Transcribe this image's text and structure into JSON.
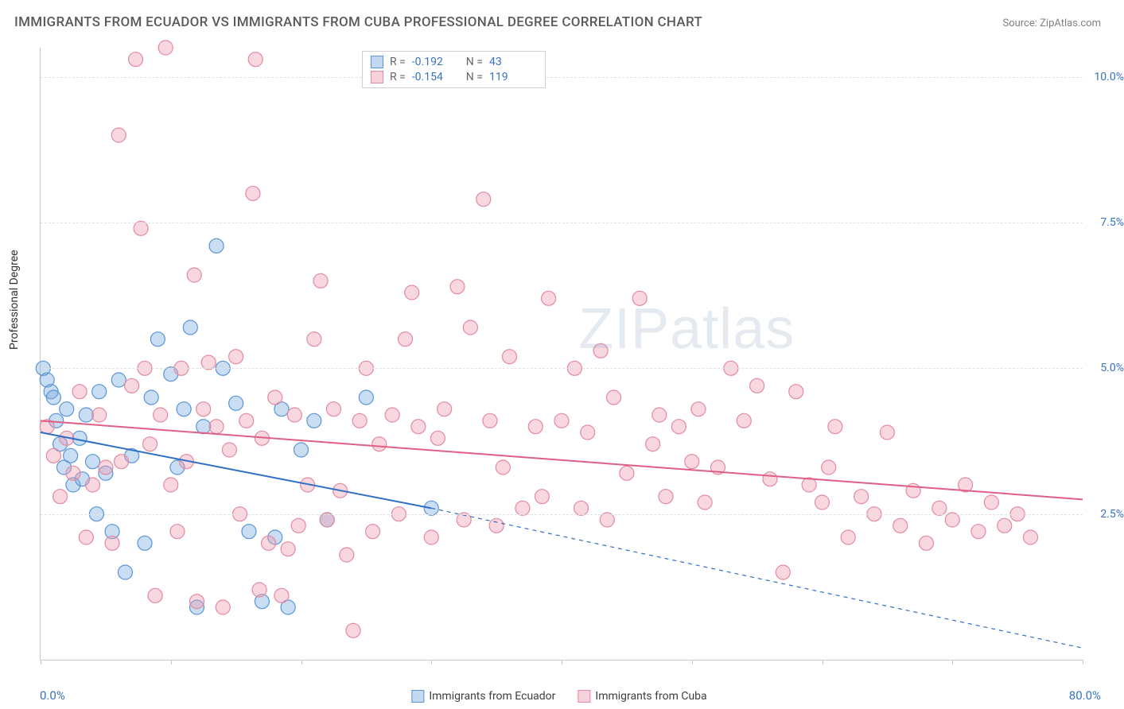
{
  "title": "IMMIGRANTS FROM ECUADOR VS IMMIGRANTS FROM CUBA PROFESSIONAL DEGREE CORRELATION CHART",
  "source": "Source: ZipAtlas.com",
  "y_axis_label": "Professional Degree",
  "x_axis": {
    "min": 0.0,
    "max": 80.0,
    "label_left": "0.0%",
    "label_right": "80.0%",
    "tick_step": 10.0
  },
  "y_axis": {
    "min": 0.0,
    "max": 10.5,
    "ticks": [
      2.5,
      5.0,
      7.5,
      10.0
    ],
    "tick_labels": [
      "2.5%",
      "5.0%",
      "7.5%",
      "10.0%"
    ]
  },
  "grid_color": "#e2e2e2",
  "axis_color": "#c8c8c8",
  "background_color": "#ffffff",
  "watermark": "ZIPatlas",
  "series": [
    {
      "name": "Immigrants from Ecuador",
      "label": "Immigrants from Ecuador",
      "color_fill": "rgba(120,170,225,0.40)",
      "color_stroke": "#5a95d6",
      "R": "-0.192",
      "N": "43",
      "marker_radius": 9,
      "trend": {
        "x1": 0,
        "y1": 3.9,
        "x2": 30,
        "y2": 2.6,
        "solid_until": 30,
        "dash_x2": 80,
        "dash_y2": 0.2,
        "stroke": "#2f6fc6",
        "width": 2
      },
      "points": [
        [
          0.5,
          4.8
        ],
        [
          0.8,
          4.6
        ],
        [
          0.2,
          5.0
        ],
        [
          1.0,
          4.5
        ],
        [
          1.2,
          4.1
        ],
        [
          1.5,
          3.7
        ],
        [
          1.8,
          3.3
        ],
        [
          2.0,
          4.3
        ],
        [
          2.3,
          3.5
        ],
        [
          2.5,
          3.0
        ],
        [
          3.0,
          3.8
        ],
        [
          3.2,
          3.1
        ],
        [
          3.5,
          4.2
        ],
        [
          4.0,
          3.4
        ],
        [
          4.3,
          2.5
        ],
        [
          4.5,
          4.6
        ],
        [
          5.0,
          3.2
        ],
        [
          5.5,
          2.2
        ],
        [
          6.0,
          4.8
        ],
        [
          6.5,
          1.5
        ],
        [
          7.0,
          3.5
        ],
        [
          8.0,
          2.0
        ],
        [
          8.5,
          4.5
        ],
        [
          9.0,
          5.5
        ],
        [
          10.0,
          4.9
        ],
        [
          10.5,
          3.3
        ],
        [
          11.0,
          4.3
        ],
        [
          11.5,
          5.7
        ],
        [
          12.0,
          0.9
        ],
        [
          12.5,
          4.0
        ],
        [
          13.5,
          7.1
        ],
        [
          14.0,
          5.0
        ],
        [
          15.0,
          4.4
        ],
        [
          16.0,
          2.2
        ],
        [
          17.0,
          1.0
        ],
        [
          18.0,
          2.1
        ],
        [
          18.5,
          4.3
        ],
        [
          19.0,
          0.9
        ],
        [
          20.0,
          3.6
        ],
        [
          21.0,
          4.1
        ],
        [
          22.0,
          2.4
        ],
        [
          25.0,
          4.5
        ],
        [
          30.0,
          2.6
        ]
      ]
    },
    {
      "name": "Immigrants from Cuba",
      "label": "Immigrants from Cuba",
      "color_fill": "rgba(240,155,175,0.40)",
      "color_stroke": "#e28aa1",
      "R": "-0.154",
      "N": "119",
      "marker_radius": 9,
      "trend": {
        "x1": 0,
        "y1": 4.1,
        "x2": 80,
        "y2": 2.75,
        "stroke": "#e05f86",
        "width": 2
      },
      "points": [
        [
          0.5,
          4.0
        ],
        [
          1.0,
          3.5
        ],
        [
          1.5,
          2.8
        ],
        [
          2.0,
          3.8
        ],
        [
          2.5,
          3.2
        ],
        [
          3.0,
          4.6
        ],
        [
          3.5,
          2.1
        ],
        [
          4.0,
          3.0
        ],
        [
          4.5,
          4.2
        ],
        [
          5.0,
          3.3
        ],
        [
          5.5,
          2.0
        ],
        [
          6.0,
          9.0
        ],
        [
          6.2,
          3.4
        ],
        [
          7.0,
          4.7
        ],
        [
          7.3,
          10.3
        ],
        [
          7.7,
          7.4
        ],
        [
          8.0,
          5.0
        ],
        [
          8.4,
          3.7
        ],
        [
          8.8,
          1.1
        ],
        [
          9.2,
          4.2
        ],
        [
          9.6,
          10.5
        ],
        [
          10.0,
          3.0
        ],
        [
          10.5,
          2.2
        ],
        [
          10.8,
          5.0
        ],
        [
          11.2,
          3.4
        ],
        [
          11.8,
          6.6
        ],
        [
          12.0,
          1.0
        ],
        [
          12.5,
          4.3
        ],
        [
          12.9,
          5.1
        ],
        [
          13.5,
          4.0
        ],
        [
          14.0,
          0.9
        ],
        [
          14.5,
          3.6
        ],
        [
          15.0,
          5.2
        ],
        [
          15.3,
          2.5
        ],
        [
          15.8,
          4.1
        ],
        [
          16.3,
          8.0
        ],
        [
          16.5,
          10.3
        ],
        [
          16.8,
          1.2
        ],
        [
          17.0,
          3.8
        ],
        [
          17.5,
          2.0
        ],
        [
          18.0,
          4.5
        ],
        [
          18.5,
          1.1
        ],
        [
          19.0,
          1.9
        ],
        [
          19.5,
          4.2
        ],
        [
          19.8,
          2.3
        ],
        [
          20.5,
          3.0
        ],
        [
          21.0,
          5.5
        ],
        [
          21.5,
          6.5
        ],
        [
          22.0,
          2.4
        ],
        [
          22.5,
          4.3
        ],
        [
          23.0,
          2.9
        ],
        [
          23.5,
          1.8
        ],
        [
          24.0,
          0.5
        ],
        [
          24.5,
          4.1
        ],
        [
          25.0,
          5.0
        ],
        [
          25.5,
          2.2
        ],
        [
          26.0,
          3.7
        ],
        [
          27.0,
          4.2
        ],
        [
          27.5,
          2.5
        ],
        [
          28.0,
          5.5
        ],
        [
          28.5,
          6.3
        ],
        [
          29.0,
          4.0
        ],
        [
          30.0,
          2.1
        ],
        [
          30.5,
          3.8
        ],
        [
          31.0,
          4.3
        ],
        [
          32.0,
          6.4
        ],
        [
          32.5,
          2.4
        ],
        [
          33.0,
          5.7
        ],
        [
          34.0,
          7.9
        ],
        [
          34.5,
          4.1
        ],
        [
          35.0,
          2.3
        ],
        [
          35.5,
          3.3
        ],
        [
          36.0,
          5.2
        ],
        [
          37.0,
          2.6
        ],
        [
          38.0,
          4.0
        ],
        [
          38.5,
          2.8
        ],
        [
          39.0,
          6.2
        ],
        [
          40.0,
          4.1
        ],
        [
          41.0,
          5.0
        ],
        [
          41.5,
          2.6
        ],
        [
          42.0,
          3.9
        ],
        [
          43.0,
          5.3
        ],
        [
          43.5,
          2.4
        ],
        [
          44.0,
          4.5
        ],
        [
          45.0,
          3.2
        ],
        [
          46.0,
          6.2
        ],
        [
          47.0,
          3.7
        ],
        [
          47.5,
          4.2
        ],
        [
          48.0,
          2.8
        ],
        [
          49.0,
          4.0
        ],
        [
          50.0,
          3.4
        ],
        [
          50.5,
          4.3
        ],
        [
          51.0,
          2.7
        ],
        [
          52.0,
          3.3
        ],
        [
          53.0,
          5.0
        ],
        [
          54.0,
          4.1
        ],
        [
          55.0,
          4.7
        ],
        [
          56.0,
          3.1
        ],
        [
          57.0,
          1.5
        ],
        [
          58.0,
          4.6
        ],
        [
          59.0,
          3.0
        ],
        [
          60.0,
          2.7
        ],
        [
          60.5,
          3.3
        ],
        [
          61.0,
          4.0
        ],
        [
          62.0,
          2.1
        ],
        [
          63.0,
          2.8
        ],
        [
          64.0,
          2.5
        ],
        [
          65.0,
          3.9
        ],
        [
          66.0,
          2.3
        ],
        [
          67.0,
          2.9
        ],
        [
          68.0,
          2.0
        ],
        [
          69.0,
          2.6
        ],
        [
          70.0,
          2.4
        ],
        [
          71.0,
          3.0
        ],
        [
          72.0,
          2.2
        ],
        [
          73.0,
          2.7
        ],
        [
          74.0,
          2.3
        ],
        [
          75.0,
          2.5
        ],
        [
          76.0,
          2.1
        ]
      ]
    }
  ],
  "bottom_legend": [
    {
      "label": "Immigrants from Ecuador",
      "swatch_class": "sw-b"
    },
    {
      "label": "Immigrants from Cuba",
      "swatch_class": "sw-p"
    }
  ]
}
